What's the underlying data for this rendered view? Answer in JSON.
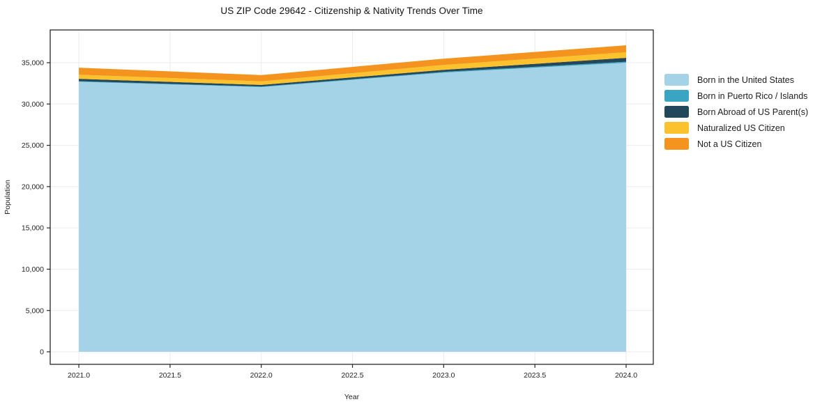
{
  "chart_data": {
    "type": "area",
    "stacked": true,
    "title": "US ZIP Code 29642 - Citizenship & Nativity Trends Over Time",
    "xlabel": "Year",
    "ylabel": "Population",
    "x": [
      2021,
      2022,
      2023,
      2024
    ],
    "series": [
      {
        "name": "Born in the United States",
        "color": "#a4d2e7",
        "values": [
          32700,
          32050,
          33800,
          35000
        ]
      },
      {
        "name": "Born in Puerto Rico / Islands",
        "color": "#3aa5c2",
        "values": [
          60,
          60,
          90,
          120
        ]
      },
      {
        "name": "Born Abroad of US Parent(s)",
        "color": "#23485c",
        "values": [
          290,
          200,
          250,
          470
        ]
      },
      {
        "name": "Naturalized US Citizen",
        "color": "#fcc22e",
        "values": [
          500,
          430,
          590,
          680
        ]
      },
      {
        "name": "Not a US Citizen",
        "color": "#f4941e",
        "values": [
          850,
          760,
          760,
          840
        ]
      }
    ],
    "totals_by_year": [
      34400,
      33500,
      35490,
      37110
    ],
    "xticks": {
      "values": [
        2021.0,
        2021.5,
        2022.0,
        2022.5,
        2023.0,
        2023.5,
        2024.0
      ],
      "labels": [
        "2021.0",
        "2021.5",
        "2022.0",
        "2022.5",
        "2023.0",
        "2023.5",
        "2024.0"
      ]
    },
    "yticks": {
      "values": [
        0,
        5000,
        10000,
        15000,
        20000,
        25000,
        30000,
        35000
      ],
      "labels": [
        "0",
        "5,000",
        "10,000",
        "15,000",
        "20,000",
        "25,000",
        "30,000",
        "35,000"
      ]
    },
    "xlim": [
      2020.843,
      2024.149
    ],
    "ylim": [
      -1518,
      38965
    ],
    "grid": true,
    "legend_position": "right-outside"
  },
  "style": {
    "grid_color": "#ebebeb",
    "spine_color": "#262626",
    "tick_color": "#262626",
    "text_color": "#1f1f1f"
  }
}
